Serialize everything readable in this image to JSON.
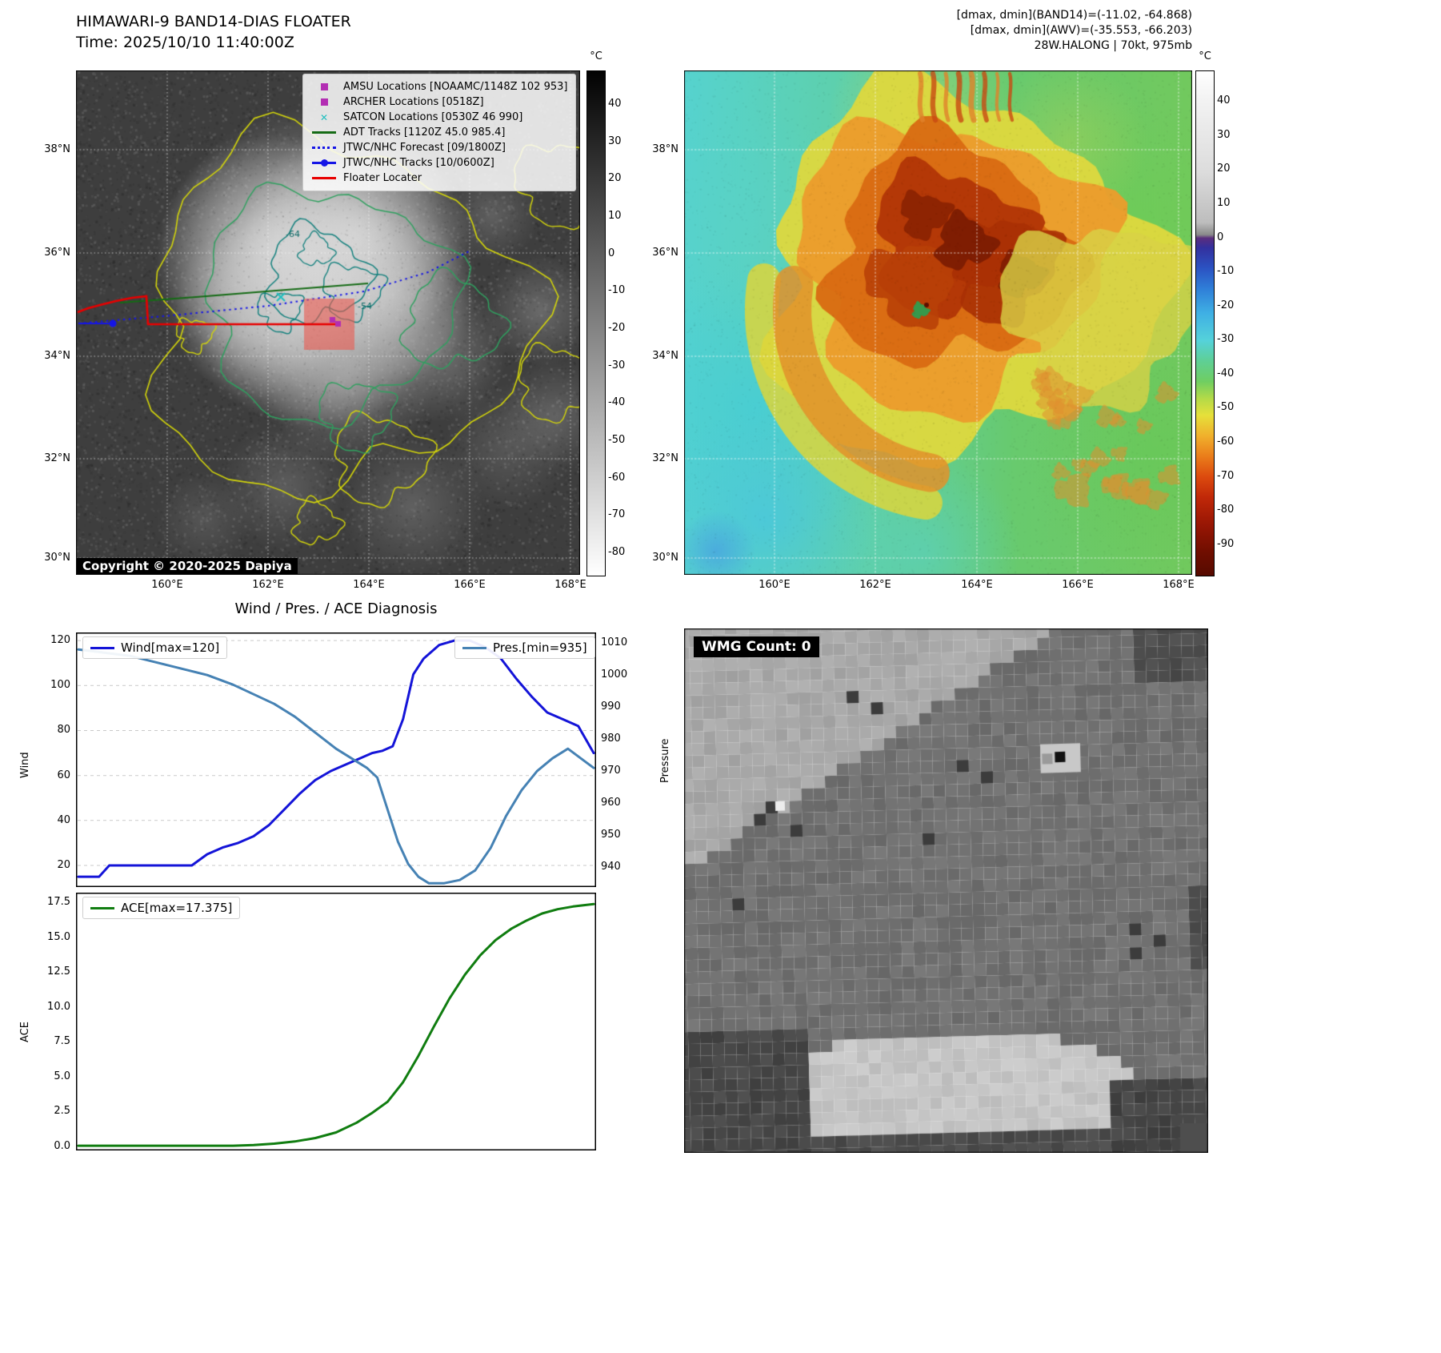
{
  "panel_tl": {
    "title": "HIMAWARI-9 BAND14-DIAS FLOATER",
    "subtitle": "Time: 2025/10/10 11:40:00Z",
    "copyright": "Copyright © 2020-2025 Dapiya",
    "colorbar": {
      "unit": "°C",
      "ticks": [
        40,
        30,
        20,
        10,
        0,
        -10,
        -20,
        -30,
        -40,
        -50,
        -60,
        -70,
        -80
      ]
    },
    "lat_ticks": [
      "38°N",
      "36°N",
      "34°N",
      "32°N",
      "30°N"
    ],
    "lon_ticks": [
      "160°E",
      "162°E",
      "164°E",
      "166°E",
      "168°E"
    ],
    "contour_labels": [
      "-64",
      "-54"
    ],
    "legend": [
      {
        "marker": "square",
        "color": "#b32eb3",
        "label": "AMSU Locations [NOAAMC/1148Z 102 953]"
      },
      {
        "marker": "square",
        "color": "#b32eb3",
        "label": "ARCHER Locations [0518Z]"
      },
      {
        "marker": "x",
        "color": "#1fbfbf",
        "label": "SATCON Locations [0530Z 46 990]"
      },
      {
        "marker": "line",
        "color": "#156b15",
        "label": "ADT Tracks [1120Z 45.0 985.4]"
      },
      {
        "marker": "dotted",
        "color": "#1515e6",
        "label": "JTWC/NHC Forecast [09/1800Z]"
      },
      {
        "marker": "line-dot",
        "color": "#1515e6",
        "label": "JTWC/NHC Tracks [10/0600Z]"
      },
      {
        "marker": "line",
        "color": "#e80000",
        "label": "Floater Locater"
      }
    ]
  },
  "panel_tr": {
    "annotations": [
      "[dmax, dmin](BAND14)=(-11.02, -64.868)",
      "[dmax, dmin](AWV)=(-35.553, -66.203)",
      "28W.HALONG | 70kt, 975mb"
    ],
    "colorbar": {
      "unit": "°C",
      "ticks": [
        40,
        30,
        20,
        10,
        0,
        -10,
        -20,
        -30,
        -40,
        -50,
        -60,
        -70,
        -80,
        -90
      ]
    },
    "lat_ticks": [
      "38°N",
      "36°N",
      "34°N",
      "32°N",
      "30°N"
    ],
    "lon_ticks": [
      "160°E",
      "162°E",
      "164°E",
      "166°E",
      "168°E"
    ]
  },
  "panel_bl": {
    "title": "Wind / Pres. / ACE Diagnosis"
  },
  "panel_br": {
    "wmg_label": "WMG Count: 0"
  },
  "chart_data": [
    {
      "type": "line",
      "title": "Wind / Pres. / ACE Diagnosis",
      "ylabel_left": "Wind",
      "ylabel_right": "Pressure",
      "ylim_left": [
        10.4,
        123.6
      ],
      "ylim_right": [
        933.8,
        1013.3
      ],
      "yticks_left": [
        120,
        100,
        80,
        60,
        40,
        20
      ],
      "yticks_right": [
        1010,
        1000,
        990,
        980,
        970,
        960,
        950,
        940
      ],
      "grid": "dashed-horizontal",
      "series": [
        {
          "name": "Wind[max=120]",
          "color": "#1414d8",
          "axis": "left",
          "x": [
            0.0,
            0.04,
            0.06,
            0.1,
            0.14,
            0.18,
            0.22,
            0.25,
            0.28,
            0.31,
            0.34,
            0.37,
            0.4,
            0.43,
            0.46,
            0.49,
            0.52,
            0.55,
            0.57,
            0.59,
            0.61,
            0.63,
            0.65,
            0.67,
            0.7,
            0.73,
            0.76,
            0.79,
            0.82,
            0.85,
            0.88,
            0.91,
            0.94,
            0.97,
            1.0
          ],
          "values": [
            15,
            15,
            20,
            20,
            20,
            20,
            20,
            25,
            28,
            30,
            33,
            38,
            45,
            52,
            58,
            62,
            65,
            68,
            70,
            71,
            73,
            85,
            105,
            112,
            118,
            120,
            120,
            117,
            112,
            103,
            95,
            88,
            85,
            82,
            70
          ]
        },
        {
          "name": "Pres.[min=935]",
          "color": "#4682b4",
          "axis": "right",
          "x": [
            0.0,
            0.05,
            0.1,
            0.15,
            0.2,
            0.25,
            0.3,
            0.34,
            0.38,
            0.42,
            0.46,
            0.5,
            0.53,
            0.56,
            0.58,
            0.6,
            0.62,
            0.64,
            0.66,
            0.68,
            0.71,
            0.74,
            0.77,
            0.8,
            0.83,
            0.86,
            0.89,
            0.92,
            0.95,
            1.0
          ],
          "values": [
            1008,
            1007,
            1006,
            1004,
            1002,
            1000,
            997,
            994,
            991,
            987,
            982,
            977,
            974,
            971,
            968,
            958,
            948,
            941,
            937,
            935,
            935,
            936,
            939,
            946,
            956,
            964,
            970,
            974,
            977,
            971
          ]
        }
      ]
    },
    {
      "type": "line",
      "ylabel": "ACE",
      "ylim": [
        -0.29,
        18.19
      ],
      "yticks": [
        "17.5",
        "15.0",
        "12.5",
        "10.0",
        "7.5",
        "5.0",
        "2.5",
        "0.0"
      ],
      "series": [
        {
          "name": "ACE[max=17.375]",
          "color": "#107d10",
          "x": [
            0.0,
            0.05,
            0.1,
            0.15,
            0.2,
            0.25,
            0.3,
            0.34,
            0.38,
            0.42,
            0.46,
            0.5,
            0.54,
            0.57,
            0.6,
            0.63,
            0.66,
            0.69,
            0.72,
            0.75,
            0.78,
            0.81,
            0.84,
            0.87,
            0.9,
            0.93,
            0.96,
            1.0
          ],
          "values": [
            0.05,
            0.05,
            0.05,
            0.05,
            0.05,
            0.05,
            0.05,
            0.1,
            0.2,
            0.35,
            0.6,
            1.0,
            1.7,
            2.4,
            3.2,
            4.6,
            6.5,
            8.6,
            10.6,
            12.3,
            13.7,
            14.8,
            15.6,
            16.2,
            16.7,
            17.0,
            17.2,
            17.375
          ]
        }
      ]
    }
  ]
}
